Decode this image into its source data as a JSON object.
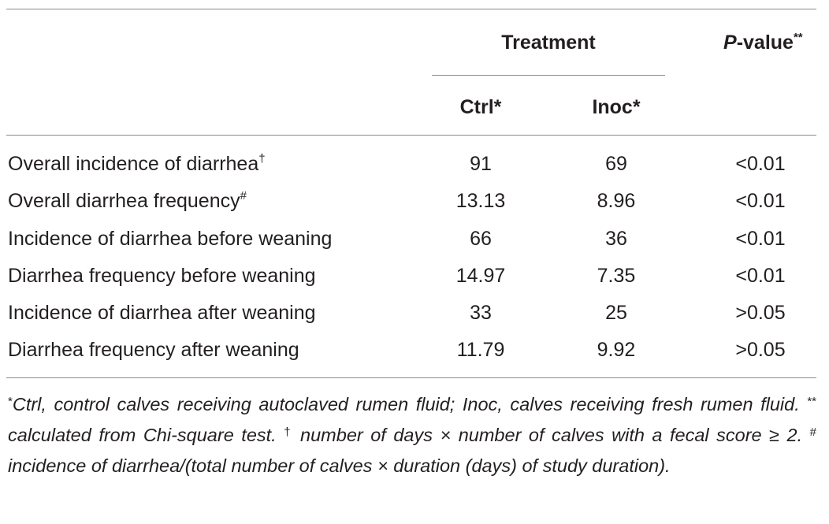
{
  "header": {
    "treatment": "Treatment",
    "pvalue_prefix": "P",
    "pvalue_suffix": "-value",
    "pvalue_mark": "**",
    "ctrl": "Ctrl*",
    "inoc": "Inoc*"
  },
  "rows": [
    {
      "label": "Overall incidence of diarrhea",
      "mark": "†",
      "ctrl": "91",
      "inoc": "69",
      "p": "<0.01"
    },
    {
      "label": "Overall diarrhea frequency",
      "mark": "#",
      "ctrl": "13.13",
      "inoc": "8.96",
      "p": "<0.01"
    },
    {
      "label": "Incidence of diarrhea before weaning",
      "mark": "",
      "ctrl": "66",
      "inoc": "36",
      "p": "<0.01"
    },
    {
      "label": "Diarrhea frequency before weaning",
      "mark": "",
      "ctrl": "14.97",
      "inoc": "7.35",
      "p": "<0.01"
    },
    {
      "label": "Incidence of diarrhea after weaning",
      "mark": "",
      "ctrl": "33",
      "inoc": "25",
      "p": ">0.05"
    },
    {
      "label": "Diarrhea frequency after weaning",
      "mark": "",
      "ctrl": "11.79",
      "inoc": "9.92",
      "p": ">0.05"
    }
  ],
  "footnote": {
    "mark1": "*",
    "text1": "Ctrl, control calves receiving autoclaved rumen fluid; Inoc, calves receiving fresh rumen fluid. ",
    "mark2": "**",
    "text2": " calculated from Chi-square test. ",
    "mark3": "†",
    "text3": " number of days × number of calves with a fecal score ≥ 2. ",
    "mark4": "#",
    "text4": " incidence of diarrhea/(total number of calves × duration (days) of study duration)."
  }
}
